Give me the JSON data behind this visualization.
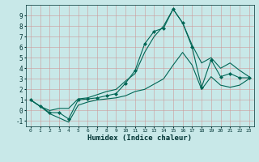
{
  "xlabel": "Humidex (Indice chaleur)",
  "xlim": [
    -0.5,
    23.5
  ],
  "ylim": [
    -1.5,
    10.0
  ],
  "yticks": [
    -1,
    0,
    1,
    2,
    3,
    4,
    5,
    6,
    7,
    8,
    9
  ],
  "xticks": [
    0,
    1,
    2,
    3,
    4,
    5,
    6,
    7,
    8,
    9,
    10,
    11,
    12,
    13,
    14,
    15,
    16,
    17,
    18,
    19,
    20,
    21,
    22,
    23
  ],
  "bg_color": "#c8e8e8",
  "grid_color": "#b0cccc",
  "line_color": "#006655",
  "x": [
    0,
    1,
    2,
    3,
    4,
    5,
    6,
    7,
    8,
    9,
    10,
    11,
    12,
    13,
    14,
    15,
    16,
    17,
    18,
    19,
    20,
    21,
    22,
    23
  ],
  "line_main": [
    1.0,
    0.4,
    -0.2,
    -0.2,
    -0.8,
    1.0,
    1.1,
    1.2,
    1.4,
    1.6,
    2.6,
    3.8,
    6.3,
    7.5,
    7.8,
    9.6,
    8.3,
    6.0,
    2.2,
    4.8,
    3.2,
    3.5,
    3.1,
    3.1
  ],
  "line_upper": [
    1.0,
    0.4,
    0.0,
    0.2,
    0.2,
    1.1,
    1.2,
    1.5,
    1.8,
    2.0,
    2.8,
    3.5,
    5.5,
    7.0,
    8.0,
    9.6,
    8.3,
    6.2,
    4.5,
    5.0,
    4.0,
    4.5,
    3.8,
    3.2
  ],
  "line_lower": [
    1.0,
    0.4,
    -0.3,
    -0.7,
    -1.1,
    0.5,
    0.8,
    1.0,
    1.1,
    1.2,
    1.4,
    1.8,
    2.0,
    2.5,
    3.0,
    4.3,
    5.5,
    4.3,
    2.0,
    3.2,
    2.4,
    2.2,
    2.4,
    3.0
  ]
}
